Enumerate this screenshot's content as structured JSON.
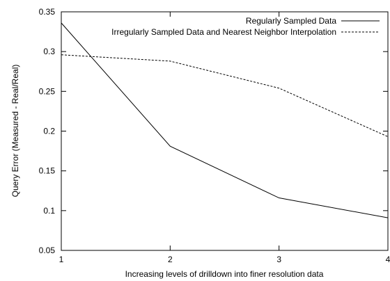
{
  "chart_data": {
    "type": "line",
    "title": "",
    "xlabel": "Increasing levels of drilldown into finer resolution data",
    "ylabel": "Query Error (Measured - Real/Real)",
    "x": [
      1,
      2,
      3,
      4
    ],
    "xlim": [
      1,
      4
    ],
    "ylim": [
      0.05,
      0.35
    ],
    "xticks": [
      "1",
      "2",
      "3",
      "4"
    ],
    "yticks": [
      "0.05",
      "0.1",
      "0.15",
      "0.2",
      "0.25",
      "0.3",
      "0.35"
    ],
    "grid": false,
    "legend_position": "top-right",
    "series": [
      {
        "name": "Regularly Sampled Data",
        "values": [
          0.336,
          0.181,
          0.116,
          0.091
        ],
        "style": "solid",
        "color": "#000000"
      },
      {
        "name": "Irregularly Sampled Data and Nearest Neighbor Interpolation",
        "values": [
          0.296,
          0.288,
          0.254,
          0.193
        ],
        "style": "dashed",
        "color": "#000000"
      }
    ]
  }
}
